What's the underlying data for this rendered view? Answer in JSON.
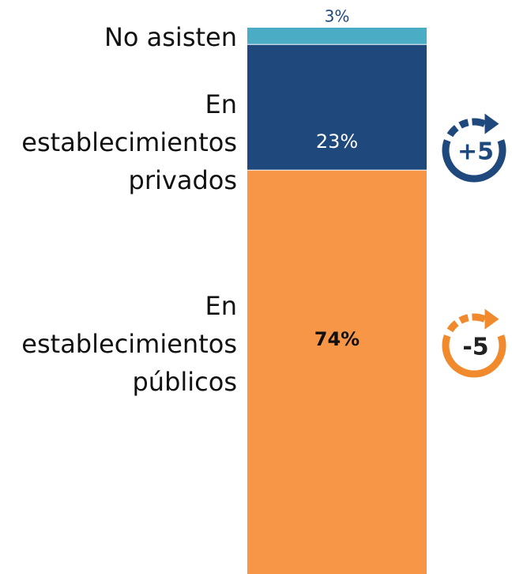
{
  "chart_data": {
    "type": "stacked-bar",
    "categories": [
      null
    ],
    "series": [
      {
        "name": "No asisten",
        "color": "#4bacc6",
        "values": [
          3
        ],
        "value_labels": [
          "3%"
        ]
      },
      {
        "name": "En establecimientos privados",
        "color": "#1f497d",
        "values": [
          23
        ],
        "value_labels": [
          "23%"
        ]
      },
      {
        "name": "En establecimientos públicos",
        "color": "#f79646",
        "values": [
          74
        ],
        "value_labels": [
          "74%"
        ]
      }
    ],
    "annotations": [
      {
        "text": "+5",
        "color": "#1f497d"
      },
      {
        "text": "-5",
        "color": "#f08a2c"
      }
    ]
  }
}
